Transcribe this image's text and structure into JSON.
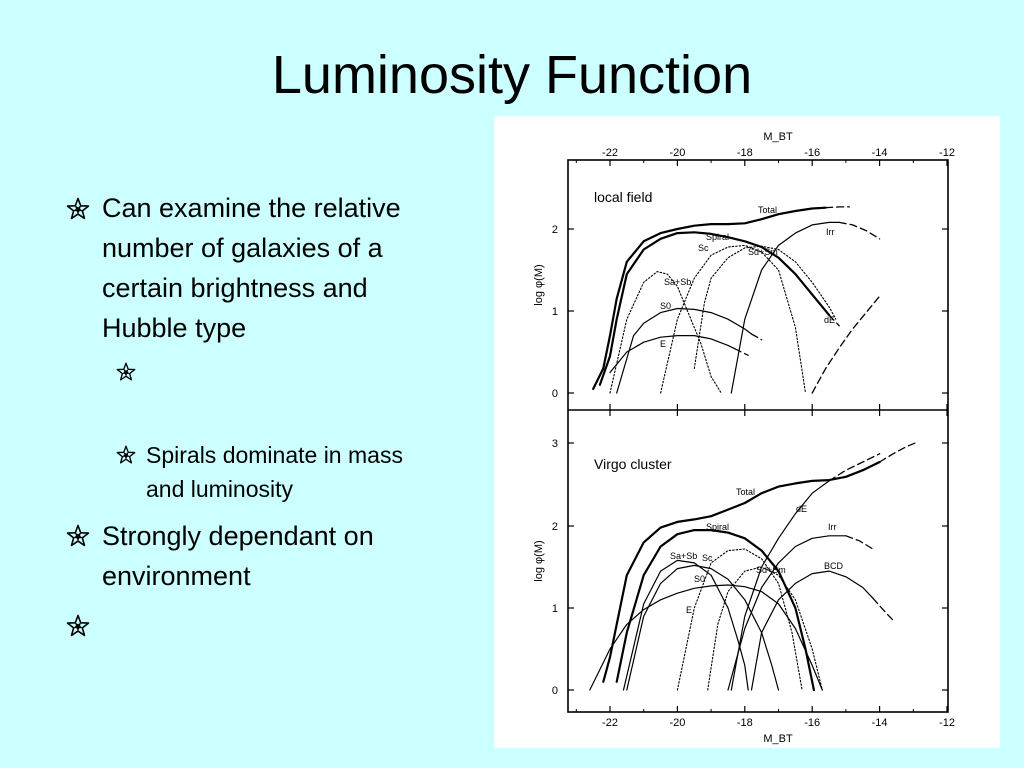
{
  "slide": {
    "title": "Luminosity Function",
    "bullets": [
      {
        "level": 1,
        "lines": [
          "Can examine the relative",
          "number of galaxies of a",
          "certain brightness and",
          "Hubble type"
        ]
      },
      {
        "level": 2,
        "lines": []
      },
      {
        "level": 2,
        "lines": [
          "Spirals dominate in mass",
          "and luminosity"
        ]
      },
      {
        "level": 1,
        "lines": [
          "Strongly dependant on",
          "environment"
        ]
      },
      {
        "level": 1,
        "lines": []
      }
    ],
    "bullet_icon": "star-bullet-icon"
  },
  "chart_data": [
    {
      "type": "line",
      "title": "local field",
      "xlabel": "M_BT",
      "ylabel": "log φ(M)",
      "xlim": [
        -23,
        -12
      ],
      "ylim": [
        -0.2,
        2.9
      ],
      "x_ticks": [
        "-22",
        "-20",
        "-18",
        "-16",
        "-14",
        "-12"
      ],
      "y_ticks": [
        "0",
        "1",
        "2"
      ],
      "series": [
        {
          "name": "Total",
          "style": "thick-solid",
          "x": [
            -22.5,
            -22.2,
            -22.0,
            -21.8,
            -21.5,
            -21.0,
            -20.5,
            -20.0,
            -19.5,
            -19.0,
            -18.5,
            -18.0,
            -17.5,
            -17.0,
            -16.5,
            -16.0,
            -15.6
          ],
          "y": [
            0.05,
            0.3,
            0.7,
            1.15,
            1.6,
            1.85,
            1.95,
            2.0,
            2.04,
            2.06,
            2.06,
            2.07,
            2.12,
            2.18,
            2.22,
            2.25,
            2.26
          ]
        },
        {
          "name": "Total",
          "style": "dashed",
          "x": [
            -15.6,
            -15.2,
            -14.9
          ],
          "y": [
            2.26,
            2.27,
            2.27
          ]
        },
        {
          "name": "Spiral",
          "style": "thick-solid",
          "x": [
            -22.3,
            -22.0,
            -21.8,
            -21.5,
            -21.0,
            -20.5,
            -20.0,
            -19.5,
            -19.0,
            -18.5,
            -18.0,
            -17.5,
            -17.0,
            -16.5,
            -16.0,
            -15.5
          ],
          "y": [
            0.1,
            0.45,
            0.9,
            1.45,
            1.75,
            1.88,
            1.95,
            1.96,
            1.94,
            1.9,
            1.85,
            1.78,
            1.65,
            1.45,
            1.2,
            0.95
          ]
        },
        {
          "name": "Spiral",
          "style": "dashed",
          "x": [
            -15.5,
            -15.2
          ],
          "y": [
            0.95,
            0.82
          ]
        },
        {
          "name": "Sc",
          "style": "dotted",
          "x": [
            -20.5,
            -20.0,
            -19.5,
            -19.0,
            -18.5,
            -18.0,
            -17.5,
            -17.0,
            -16.5,
            -16.2
          ],
          "y": [
            0.0,
            0.9,
            1.4,
            1.68,
            1.78,
            1.8,
            1.72,
            1.5,
            0.8,
            0.0
          ]
        },
        {
          "name": "Sd+Sm",
          "style": "dotted",
          "x": [
            -19.5,
            -19.2,
            -19.0,
            -18.5,
            -18.0,
            -17.5,
            -17.0,
            -16.5,
            -16.0,
            -15.5,
            -15.3
          ],
          "y": [
            0.3,
            1.1,
            1.4,
            1.65,
            1.77,
            1.79,
            1.75,
            1.6,
            1.35,
            1.05,
            0.9
          ]
        },
        {
          "name": "Sa+Sb",
          "style": "dotted",
          "x": [
            -22.0,
            -21.5,
            -21.0,
            -20.6,
            -20.3,
            -20.0,
            -19.7,
            -19.3,
            -19.0,
            -18.7
          ],
          "y": [
            0.0,
            0.9,
            1.35,
            1.48,
            1.45,
            1.3,
            1.0,
            0.6,
            0.2,
            0.0
          ]
        },
        {
          "name": "S0",
          "style": "thin-solid",
          "x": [
            -21.8,
            -21.3,
            -21.0,
            -20.5,
            -20.0,
            -19.5,
            -19.0,
            -18.5,
            -18.0,
            -17.8
          ],
          "y": [
            0.0,
            0.7,
            0.85,
            0.98,
            1.03,
            1.02,
            0.98,
            0.9,
            0.78,
            0.72
          ]
        },
        {
          "name": "S0",
          "style": "dashed",
          "x": [
            -17.8,
            -17.5
          ],
          "y": [
            0.72,
            0.65
          ]
        },
        {
          "name": "E",
          "style": "thin-solid",
          "x": [
            -22.0,
            -21.5,
            -21.0,
            -20.5,
            -20.0,
            -19.5,
            -19.0,
            -18.5,
            -18.3
          ],
          "y": [
            0.25,
            0.5,
            0.62,
            0.68,
            0.7,
            0.7,
            0.66,
            0.58,
            0.54
          ]
        },
        {
          "name": "E",
          "style": "dashed",
          "x": [
            -18.3,
            -17.9
          ],
          "y": [
            0.54,
            0.46
          ]
        },
        {
          "name": "Irr",
          "style": "thin-solid",
          "x": [
            -18.4,
            -18.0,
            -17.5,
            -17.0,
            -16.5,
            -16.0,
            -15.5,
            -15.2
          ],
          "y": [
            0.0,
            0.9,
            1.5,
            1.8,
            1.95,
            2.05,
            2.08,
            2.08
          ]
        },
        {
          "name": "Irr",
          "style": "dashed",
          "x": [
            -15.2,
            -14.8,
            -14.4,
            -14.0
          ],
          "y": [
            2.08,
            2.05,
            1.98,
            1.88
          ]
        },
        {
          "name": "dE",
          "style": "dashed",
          "x": [
            -16.0,
            -15.6,
            -15.2,
            -14.8,
            -14.4,
            -14.0
          ],
          "y": [
            0.0,
            0.3,
            0.55,
            0.78,
            0.98,
            1.18
          ]
        }
      ],
      "annotations": [
        "Total",
        "Spiral",
        "Sc",
        "Sd+Sm",
        "Sa+Sb",
        "S0",
        "E",
        "Irr",
        "dE"
      ]
    },
    {
      "type": "line",
      "title": "Virgo cluster",
      "xlabel": "M_BT",
      "ylabel": "log φ(M)",
      "xlim": [
        -23,
        -12
      ],
      "ylim": [
        -0.2,
        3.15
      ],
      "x_ticks": [
        "-22",
        "-20",
        "-18",
        "-16",
        "-14",
        "-12"
      ],
      "y_ticks": [
        "0",
        "1",
        "2",
        "3"
      ],
      "series": [
        {
          "name": "Total",
          "style": "thick-solid",
          "x": [
            -22.2,
            -22.0,
            -21.8,
            -21.5,
            -21.0,
            -20.5,
            -20.0,
            -19.5,
            -19.0,
            -18.5,
            -18.0,
            -17.5,
            -17.0,
            -16.5,
            -16.0,
            -15.5,
            -15.0,
            -14.5,
            -14.0
          ],
          "y": [
            0.1,
            0.4,
            0.8,
            1.4,
            1.8,
            1.98,
            2.05,
            2.08,
            2.12,
            2.2,
            2.28,
            2.4,
            2.48,
            2.52,
            2.55,
            2.56,
            2.6,
            2.68,
            2.78
          ]
        },
        {
          "name": "Total",
          "style": "dashed",
          "x": [
            -14.0,
            -13.6,
            -13.2,
            -12.9
          ],
          "y": [
            2.78,
            2.88,
            2.97,
            3.02
          ]
        },
        {
          "name": "Spiral",
          "style": "thick-solid",
          "x": [
            -21.8,
            -21.5,
            -21.0,
            -20.5,
            -20.0,
            -19.5,
            -19.0,
            -18.5,
            -18.0,
            -17.5,
            -17.0,
            -16.5,
            -16.2,
            -15.95
          ],
          "y": [
            0.1,
            0.7,
            1.4,
            1.75,
            1.9,
            1.95,
            1.95,
            1.92,
            1.85,
            1.7,
            1.45,
            1.0,
            0.5,
            0.0
          ]
        },
        {
          "name": "Sc",
          "style": "dotted",
          "x": [
            -20.0,
            -19.5,
            -19.0,
            -18.5,
            -18.0,
            -17.5,
            -17.0,
            -16.6,
            -16.3
          ],
          "y": [
            0.0,
            1.0,
            1.55,
            1.7,
            1.72,
            1.6,
            1.3,
            0.7,
            0.0
          ]
        },
        {
          "name": "Sa+Sb",
          "style": "thin-solid",
          "x": [
            -21.6,
            -21.0,
            -20.5,
            -20.0,
            -19.5,
            -19.0,
            -18.5,
            -18.2,
            -18.0,
            -17.9
          ],
          "y": [
            0.0,
            1.05,
            1.45,
            1.58,
            1.55,
            1.4,
            1.0,
            0.6,
            0.3,
            0.0
          ]
        },
        {
          "name": "S0",
          "style": "thin-solid",
          "x": [
            -21.5,
            -21.0,
            -20.5,
            -20.0,
            -19.5,
            -19.0,
            -18.5,
            -18.0,
            -17.5,
            -17.2,
            -17.0
          ],
          "y": [
            0.0,
            0.9,
            1.3,
            1.48,
            1.52,
            1.48,
            1.35,
            1.1,
            0.7,
            0.3,
            0.0
          ]
        },
        {
          "name": "E",
          "style": "thin-solid",
          "x": [
            -22.6,
            -22.0,
            -21.5,
            -21.0,
            -20.5,
            -20.0,
            -19.5,
            -19.0,
            -18.5,
            -18.0,
            -17.5,
            -17.0,
            -16.5,
            -16.0,
            -15.7
          ],
          "y": [
            0.0,
            0.5,
            0.8,
            0.98,
            1.1,
            1.18,
            1.24,
            1.27,
            1.28,
            1.26,
            1.2,
            1.05,
            0.75,
            0.3,
            0.0
          ]
        },
        {
          "name": "Sd+Sm",
          "style": "dotted",
          "x": [
            -19.1,
            -18.8,
            -18.5,
            -18.0,
            -17.5,
            -17.0,
            -16.5,
            -16.0,
            -15.7
          ],
          "y": [
            0.0,
            0.8,
            1.2,
            1.45,
            1.5,
            1.4,
            1.1,
            0.5,
            0.0
          ]
        },
        {
          "name": "dE",
          "style": "thin-solid",
          "x": [
            -18.4,
            -18.0,
            -17.5,
            -17.0,
            -16.5,
            -16.0,
            -15.5
          ],
          "y": [
            0.0,
            0.9,
            1.5,
            1.85,
            2.15,
            2.4,
            2.55
          ]
        },
        {
          "name": "dE",
          "style": "dashed",
          "x": [
            -15.5,
            -15.0,
            -14.5,
            -14.0
          ],
          "y": [
            2.55,
            2.68,
            2.78,
            2.88
          ]
        },
        {
          "name": "Irr",
          "style": "thin-solid",
          "x": [
            -18.5,
            -18.0,
            -17.5,
            -17.0,
            -16.5,
            -16.0,
            -15.5,
            -15.0
          ],
          "y": [
            0.0,
            0.75,
            1.25,
            1.55,
            1.75,
            1.85,
            1.88,
            1.88
          ]
        },
        {
          "name": "Irr",
          "style": "dashed",
          "x": [
            -15.0,
            -14.6,
            -14.2
          ],
          "y": [
            1.88,
            1.82,
            1.72
          ]
        },
        {
          "name": "BCD",
          "style": "thin-solid",
          "x": [
            -17.8,
            -17.5,
            -17.0,
            -16.5,
            -16.0,
            -15.5,
            -15.0,
            -14.5,
            -14.2
          ],
          "y": [
            0.0,
            0.7,
            1.1,
            1.3,
            1.42,
            1.45,
            1.38,
            1.25,
            1.12
          ]
        },
        {
          "name": "BCD",
          "style": "dashed",
          "x": [
            -14.2,
            -13.9,
            -13.6
          ],
          "y": [
            1.12,
            0.98,
            0.85
          ]
        }
      ],
      "annotations": [
        "Total",
        "dE",
        "Spiral",
        "Irr",
        "Sc",
        "Sa+Sb",
        "Sd+Sm",
        "BCD",
        "S0",
        "E"
      ]
    }
  ]
}
